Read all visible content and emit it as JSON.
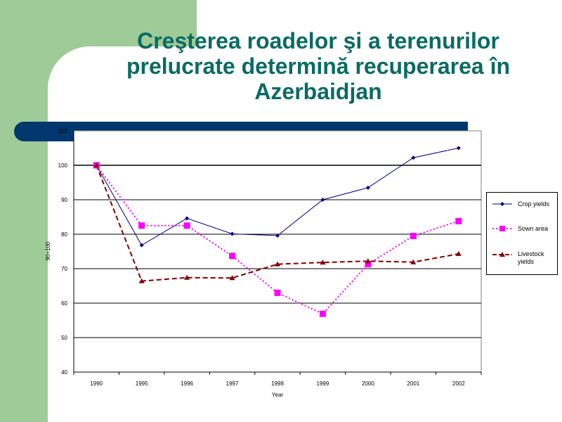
{
  "slide": {
    "title_lines": [
      "Creşterea roadelor şi a terenurilor",
      "prelucrate determină recuperarea în",
      "Azerbaidjan"
    ]
  },
  "colors": {
    "green_block": "#9fcb98",
    "title": "#0b6b63",
    "bar": "#00386e",
    "crop": "#000080",
    "sown": "#ff00ff",
    "livestock": "#800000"
  },
  "chart_data": {
    "type": "line",
    "categories": [
      "1990",
      "1995",
      "1996",
      "1997",
      "1998",
      "1999",
      "2000",
      "2001",
      "2002"
    ],
    "ylabel": "90=100",
    "xlabel": "Year",
    "ylim": [
      40,
      110
    ],
    "yticks": [
      "40",
      "50",
      "60",
      "70",
      "80",
      "90",
      "100",
      "110"
    ],
    "grid": true,
    "legend_position": "right",
    "series": [
      {
        "name": "Crop yields",
        "values": [
          100,
          76.8,
          84.6,
          80.1,
          79.6,
          90,
          93.5,
          102.2,
          105
        ],
        "color": "#000080",
        "marker": "diamond",
        "dash": "solid"
      },
      {
        "name": "Sown area",
        "values": [
          100,
          82.5,
          82.5,
          73.7,
          63,
          56.9,
          71.3,
          79.5,
          83.8
        ],
        "color": "#ff00ff",
        "marker": "square",
        "dash": "dotted"
      },
      {
        "name": "Livestock yields",
        "values": [
          100,
          66.4,
          67.4,
          67.3,
          71.3,
          71.8,
          72.2,
          71.9,
          74.3
        ],
        "color": "#800000",
        "marker": "triangle",
        "dash": "dashed"
      }
    ]
  }
}
